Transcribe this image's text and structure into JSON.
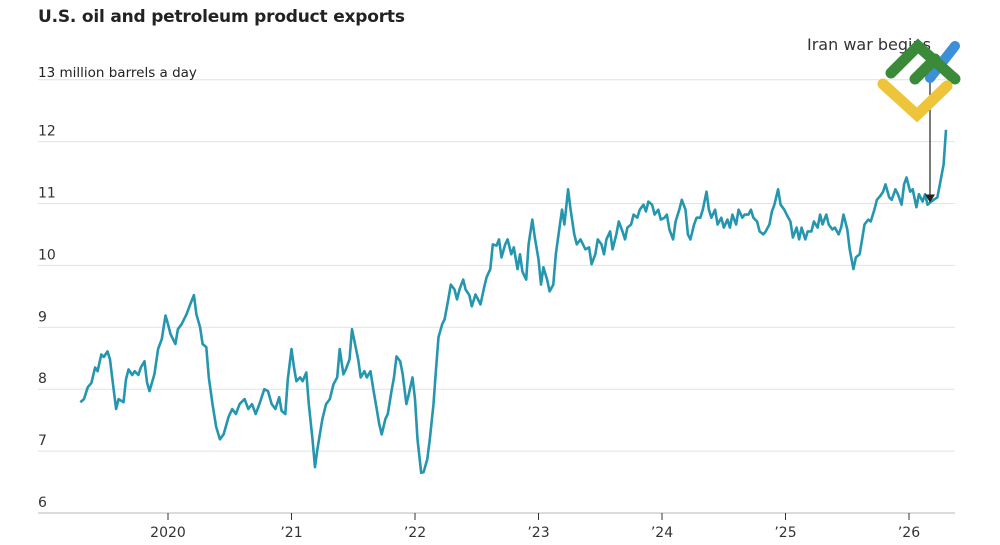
{
  "chart_data": {
    "type": "line",
    "title": "U.S. oil and petroleum product exports",
    "ylabel": "13 million barrels a day",
    "xlabel": "",
    "ylim": [
      6,
      13
    ],
    "xlim": [
      2019.29,
      2026.35
    ],
    "grid": true,
    "y_ticks": [
      6,
      7,
      8,
      9,
      10,
      11,
      12,
      13
    ],
    "y_tick_labels": [
      "6",
      "7",
      "8",
      "9",
      "10",
      "11",
      "12",
      ""
    ],
    "x_ticks": [
      2020,
      2021,
      2022,
      2023,
      2024,
      2025,
      2026
    ],
    "x_tick_labels": [
      "2020",
      "’21",
      "’22",
      "’23",
      "’24",
      "’25",
      "’26"
    ],
    "line_color": "#2596ae",
    "annotation": {
      "text": "Iran war begins",
      "x": 2026.17,
      "y": 11.0
    },
    "x": [
      2019.29,
      2019.32,
      2019.35,
      2019.38,
      2019.41,
      2019.43,
      2019.46,
      2019.48,
      2019.51,
      2019.53,
      2019.55,
      2019.58,
      2019.6,
      2019.64,
      2019.66,
      2019.68,
      2019.71,
      2019.73,
      2019.76,
      2019.78,
      2019.81,
      2019.83,
      2019.85,
      2019.89,
      2019.92,
      2019.95,
      2019.98,
      2020.0,
      2020.02,
      2020.06,
      2020.08,
      2020.11,
      2020.15,
      2020.18,
      2020.21,
      2020.23,
      2020.26,
      2020.28,
      2020.31,
      2020.33,
      2020.36,
      2020.39,
      2020.42,
      2020.45,
      2020.49,
      2020.52,
      2020.55,
      2020.58,
      2020.62,
      2020.65,
      2020.68,
      2020.71,
      2020.74,
      2020.78,
      2020.81,
      2020.84,
      2020.87,
      2020.9,
      2020.92,
      2020.95,
      2020.97,
      2021.0,
      2021.02,
      2021.04,
      2021.07,
      2021.09,
      2021.12,
      2021.14,
      2021.17,
      2021.19,
      2021.21,
      2021.25,
      2021.28,
      2021.31,
      2021.34,
      2021.37,
      2021.39,
      2021.42,
      2021.44,
      2021.47,
      2021.49,
      2021.51,
      2021.54,
      2021.56,
      2021.59,
      2021.61,
      2021.64,
      2021.66,
      2021.69,
      2021.71,
      2021.73,
      2021.76,
      2021.78,
      2021.81,
      2021.83,
      2021.85,
      2021.88,
      2021.9,
      2021.93,
      2021.95,
      2021.98,
      2022.0,
      2022.02,
      2022.05,
      2022.07,
      2022.1,
      2022.12,
      2022.15,
      2022.17,
      2022.19,
      2022.22,
      2022.24,
      2022.27,
      2022.29,
      2022.32,
      2022.34,
      2022.36,
      2022.39,
      2022.41,
      2022.44,
      2022.46,
      2022.49,
      2022.51,
      2022.53,
      2022.56,
      2022.58,
      2022.61,
      2022.63,
      2022.66,
      2022.68,
      2022.7,
      2022.73,
      2022.75,
      2022.78,
      2022.8,
      2022.83,
      2022.85,
      2022.87,
      2022.9,
      2022.92,
      2022.95,
      2022.97,
      2023.0,
      2023.02,
      2023.04,
      2023.07,
      2023.09,
      2023.12,
      2023.14,
      2023.17,
      2023.19,
      2023.21,
      2023.24,
      2023.26,
      2023.29,
      2023.31,
      2023.34,
      2023.36,
      2023.38,
      2023.41,
      2023.43,
      2023.46,
      2023.48,
      2023.51,
      2023.53,
      2023.55,
      2023.58,
      2023.6,
      2023.63,
      2023.65,
      2023.68,
      2023.7,
      2023.72,
      2023.75,
      2023.77,
      2023.8,
      2023.82,
      2023.85,
      2023.87,
      2023.89,
      2023.92,
      2023.94,
      2023.97,
      2023.99,
      2024.02,
      2024.04,
      2024.06,
      2024.09,
      2024.11,
      2024.14,
      2024.16,
      2024.19,
      2024.21,
      2024.23,
      2024.26,
      2024.28,
      2024.31,
      2024.33,
      2024.36,
      2024.38,
      2024.4,
      2024.43,
      2024.45,
      2024.48,
      2024.5,
      2024.53,
      2024.55,
      2024.57,
      2024.6,
      2024.62,
      2024.65,
      2024.67,
      2024.7,
      2024.72,
      2024.74,
      2024.77,
      2024.79,
      2024.82,
      2024.84,
      2024.87,
      2024.89,
      2024.91,
      2024.94,
      2024.96,
      2024.99,
      2025.01,
      2025.04,
      2025.06,
      2025.09,
      2025.11,
      2025.13,
      2025.16,
      2025.18,
      2025.21,
      2025.23,
      2025.26,
      2025.28,
      2025.3,
      2025.33,
      2025.35,
      2025.38,
      2025.4,
      2025.43,
      2025.45,
      2025.47,
      2025.5,
      2025.52,
      2025.55,
      2025.57,
      2025.6,
      2025.62,
      2025.64,
      2025.67,
      2025.69,
      2025.72,
      2025.74,
      2025.77,
      2025.79,
      2025.81,
      2025.84,
      2025.86,
      2025.89,
      2025.91,
      2025.94,
      2025.96,
      2025.98,
      2026.01,
      2026.03,
      2026.06,
      2026.08,
      2026.11,
      2026.13,
      2026.15,
      2026.18,
      2026.2,
      2026.23,
      2026.25,
      2026.28,
      2026.3
    ],
    "values": [
      7.79,
      7.84,
      8.03,
      8.1,
      8.35,
      8.29,
      8.56,
      8.52,
      8.61,
      8.48,
      8.16,
      7.68,
      7.84,
      7.79,
      8.16,
      8.32,
      8.23,
      8.29,
      8.23,
      8.35,
      8.45,
      8.11,
      7.97,
      8.24,
      8.65,
      8.81,
      9.19,
      9.05,
      8.89,
      8.73,
      8.97,
      9.05,
      9.21,
      9.37,
      9.52,
      9.21,
      9.0,
      8.73,
      8.68,
      8.19,
      7.76,
      7.39,
      7.19,
      7.27,
      7.55,
      7.68,
      7.6,
      7.76,
      7.84,
      7.68,
      7.76,
      7.6,
      7.76,
      8.0,
      7.97,
      7.76,
      7.68,
      7.87,
      7.65,
      7.6,
      8.16,
      8.65,
      8.35,
      8.13,
      8.19,
      8.13,
      8.27,
      7.76,
      7.19,
      6.74,
      7.03,
      7.52,
      7.76,
      7.84,
      8.08,
      8.19,
      8.65,
      8.24,
      8.32,
      8.48,
      8.97,
      8.77,
      8.48,
      8.19,
      8.29,
      8.19,
      8.29,
      8.03,
      7.68,
      7.44,
      7.27,
      7.52,
      7.6,
      7.97,
      8.19,
      8.53,
      8.45,
      8.24,
      7.76,
      7.92,
      8.19,
      7.84,
      7.19,
      6.65,
      6.66,
      6.87,
      7.19,
      7.76,
      8.32,
      8.84,
      9.05,
      9.13,
      9.45,
      9.69,
      9.61,
      9.45,
      9.61,
      9.77,
      9.61,
      9.52,
      9.34,
      9.53,
      9.45,
      9.37,
      9.65,
      9.81,
      9.94,
      10.34,
      10.32,
      10.42,
      10.13,
      10.34,
      10.42,
      10.18,
      10.29,
      9.94,
      10.18,
      9.9,
      9.77,
      10.34,
      10.74,
      10.45,
      10.1,
      9.69,
      9.97,
      9.77,
      9.58,
      9.69,
      10.18,
      10.61,
      10.9,
      10.66,
      11.23,
      10.9,
      10.5,
      10.34,
      10.42,
      10.34,
      10.26,
      10.29,
      10.02,
      10.18,
      10.42,
      10.34,
      10.18,
      10.42,
      10.55,
      10.26,
      10.5,
      10.71,
      10.55,
      10.42,
      10.61,
      10.66,
      10.82,
      10.77,
      10.9,
      10.98,
      10.87,
      11.03,
      10.98,
      10.82,
      10.9,
      10.74,
      10.77,
      10.82,
      10.58,
      10.42,
      10.71,
      10.9,
      11.06,
      10.9,
      10.5,
      10.42,
      10.66,
      10.77,
      10.77,
      10.9,
      11.19,
      10.9,
      10.77,
      10.9,
      10.66,
      10.77,
      10.61,
      10.74,
      10.61,
      10.82,
      10.66,
      10.9,
      10.77,
      10.82,
      10.82,
      10.9,
      10.77,
      10.71,
      10.55,
      10.5,
      10.55,
      10.66,
      10.87,
      10.98,
      11.23,
      10.98,
      10.9,
      10.82,
      10.71,
      10.45,
      10.61,
      10.42,
      10.61,
      10.42,
      10.55,
      10.55,
      10.71,
      10.61,
      10.82,
      10.66,
      10.82,
      10.66,
      10.58,
      10.61,
      10.5,
      10.61,
      10.82,
      10.58,
      10.26,
      9.94,
      10.13,
      10.18,
      10.42,
      10.66,
      10.74,
      10.71,
      10.9,
      11.06,
      11.13,
      11.19,
      11.31,
      11.1,
      11.06,
      11.23,
      11.15,
      10.98,
      11.31,
      11.42,
      11.19,
      11.23,
      10.94,
      11.15,
      11.03,
      11.15,
      10.98,
      11.03,
      11.06,
      11.1,
      11.31,
      11.63,
      12.19
    ]
  },
  "logo": {
    "colors": {
      "green": "#3a8a3a",
      "yellow": "#eec53a",
      "blue": "#3d8fd8"
    }
  }
}
